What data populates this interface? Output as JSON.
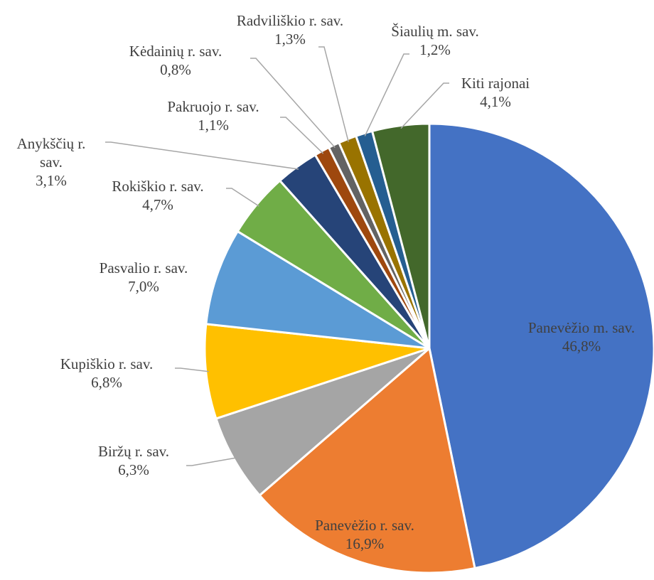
{
  "chart_data": {
    "type": "pie",
    "categories": [
      "Panevėžio m. sav.",
      "Panevėžio r. sav.",
      "Biržų r. sav.",
      "Kupiškio r. sav.",
      "Pasvalio r. sav.",
      "Rokiškio r. sav.",
      "Anykščių r. sav.",
      "Pakruojo r. sav.",
      "Kėdainių r. sav.",
      "Radviliškio r. sav.",
      "Šiaulių m. sav.",
      "Kiti rajonai"
    ],
    "values": [
      46.8,
      16.9,
      6.3,
      6.8,
      7.0,
      4.7,
      3.1,
      1.1,
      0.8,
      1.3,
      1.2,
      4.1
    ],
    "value_labels": [
      "46,8%",
      "16,9%",
      "6,3%",
      "6,8%",
      "7,0%",
      "4,7%",
      "3,1%",
      "1,1%",
      "0,8%",
      "1,3%",
      "1,2%",
      "4,1%"
    ],
    "colors": [
      "#4472c4",
      "#ed7d31",
      "#a5a5a5",
      "#ffc000",
      "#5b9bd5",
      "#70ad47",
      "#264478",
      "#9e480e",
      "#636363",
      "#997300",
      "#255e91",
      "#43682b"
    ]
  }
}
